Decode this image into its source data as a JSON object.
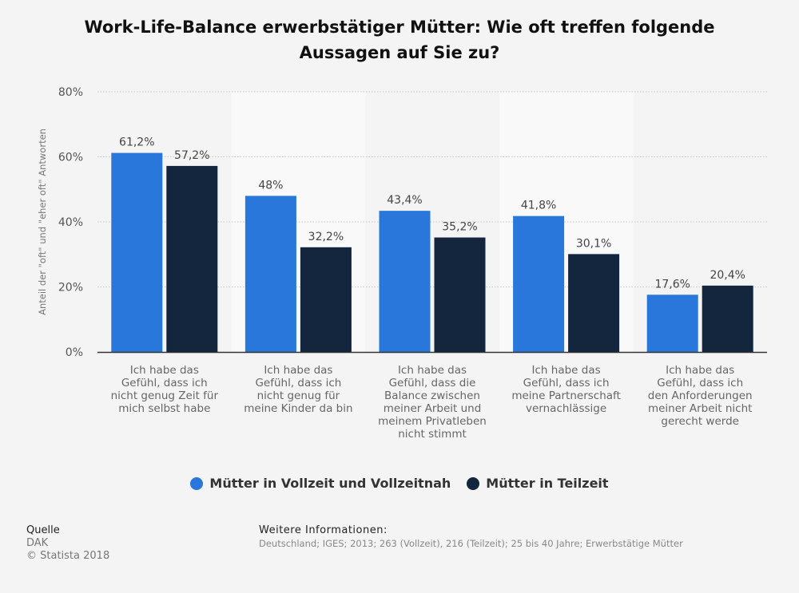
{
  "title": "Work-Life-Balance erwerbstätiger Mütter: Wie oft treffen folgende Aussagen auf Sie zu?",
  "chart_data": {
    "type": "bar",
    "ylabel": "Anteil der \"oft\" und \"eher oft\" Antworten",
    "ylim": [
      0,
      80
    ],
    "yticks": [
      "0%",
      "20%",
      "40%",
      "60%",
      "80%"
    ],
    "categories": [
      [
        "Ich habe das",
        "Gefühl, dass ich",
        "nicht genug Zeit für",
        "mich selbst habe"
      ],
      [
        "Ich habe das",
        "Gefühl, dass ich",
        "nicht genug für",
        "meine Kinder da bin"
      ],
      [
        "Ich habe das",
        "Gefühl, dass die",
        "Balance zwischen",
        "meiner Arbeit und",
        "meinem Privatleben",
        "nicht stimmt"
      ],
      [
        "Ich habe das",
        "Gefühl, dass ich",
        "meine Partnerschaft",
        "vernachlässige"
      ],
      [
        "Ich habe das",
        "Gefühl, dass ich",
        "den Anforderungen",
        "meiner Arbeit nicht",
        "gerecht werde"
      ]
    ],
    "series": [
      {
        "name": "Mütter in Vollzeit und Vollzeitnah",
        "color": "#2a77dc",
        "values": [
          61.2,
          48,
          43.4,
          41.8,
          17.6
        ],
        "labels": [
          "61,2%",
          "48%",
          "43,4%",
          "41,8%",
          "17,6%"
        ]
      },
      {
        "name": "Mütter in Teilzeit",
        "color": "#13263d",
        "values": [
          57.2,
          32.2,
          35.2,
          30.1,
          20.4
        ],
        "labels": [
          "57,2%",
          "32,2%",
          "35,2%",
          "30,1%",
          "20,4%"
        ]
      }
    ],
    "grid": true,
    "legend": "bottom-center"
  },
  "footer": {
    "source_heading": "Quelle",
    "source_name": "DAK",
    "copyright": "© Statista 2018",
    "info_heading": "Weitere Informationen:",
    "info_text": "Deutschland; IGES; 2013; 263 (Vollzeit), 216 (Teilzeit); 25 bis 40 Jahre; Erwerbstätige Mütter"
  }
}
